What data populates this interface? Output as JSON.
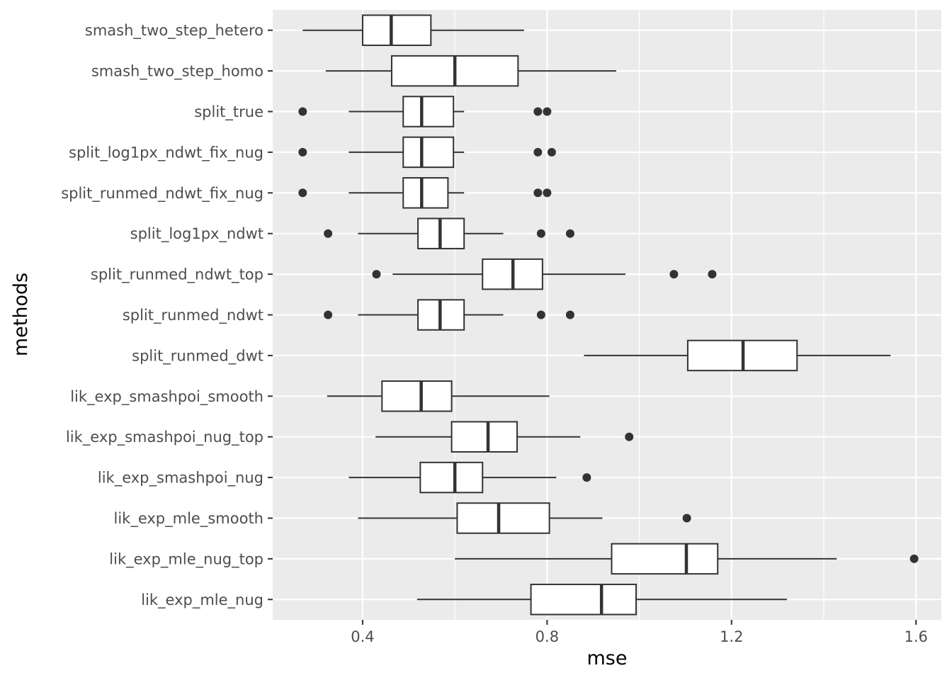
{
  "chart_data": {
    "type": "boxplot",
    "orientation": "horizontal",
    "xlabel": "mse",
    "ylabel": "methods",
    "xlim": [
      0.205,
      1.655
    ],
    "x_ticks": [
      0.4,
      0.8,
      1.2,
      1.6
    ],
    "x_tick_labels": [
      "0.4",
      "0.8",
      "1.2",
      "1.6"
    ],
    "grid": true,
    "categories": [
      "smash_two_step_hetero",
      "smash_two_step_homo",
      "split_true",
      "split_log1px_ndwt_fix_nug",
      "split_runmed_ndwt_fix_nug",
      "split_log1px_ndwt",
      "split_runmed_ndwt_top",
      "split_runmed_ndwt",
      "split_runmed_dwt",
      "lik_exp_smashpoi_smooth",
      "lik_exp_smashpoi_nug_top",
      "lik_exp_smashpoi_nug",
      "lik_exp_mle_smooth",
      "lik_exp_mle_nug_top",
      "lik_exp_mle_nug"
    ],
    "boxes": [
      {
        "name": "smash_two_step_hetero",
        "whisker_low": 0.27,
        "q1": 0.4,
        "median": 0.462,
        "q3": 0.548,
        "whisker_high": 0.75,
        "outliers": []
      },
      {
        "name": "smash_two_step_homo",
        "whisker_low": 0.32,
        "q1": 0.463,
        "median": 0.6,
        "q3": 0.737,
        "whisker_high": 0.95,
        "outliers": []
      },
      {
        "name": "split_true",
        "whisker_low": 0.37,
        "q1": 0.488,
        "median": 0.528,
        "q3": 0.597,
        "whisker_high": 0.62,
        "outliers": [
          0.27,
          0.78,
          0.8
        ]
      },
      {
        "name": "split_log1px_ndwt_fix_nug",
        "whisker_low": 0.37,
        "q1": 0.488,
        "median": 0.528,
        "q3": 0.597,
        "whisker_high": 0.62,
        "outliers": [
          0.27,
          0.78,
          0.81
        ]
      },
      {
        "name": "split_runmed_ndwt_fix_nug",
        "whisker_low": 0.37,
        "q1": 0.488,
        "median": 0.528,
        "q3": 0.585,
        "whisker_high": 0.62,
        "outliers": [
          0.27,
          0.78,
          0.8
        ]
      },
      {
        "name": "split_log1px_ndwt",
        "whisker_low": 0.39,
        "q1": 0.52,
        "median": 0.568,
        "q3": 0.62,
        "whisker_high": 0.705,
        "outliers": [
          0.325,
          0.787,
          0.85
        ]
      },
      {
        "name": "split_runmed_ndwt_top",
        "whisker_low": 0.465,
        "q1": 0.66,
        "median": 0.726,
        "q3": 0.79,
        "whisker_high": 0.97,
        "outliers": [
          0.43,
          1.075,
          1.158
        ]
      },
      {
        "name": "split_runmed_ndwt",
        "whisker_low": 0.39,
        "q1": 0.52,
        "median": 0.568,
        "q3": 0.62,
        "whisker_high": 0.705,
        "outliers": [
          0.325,
          0.787,
          0.85
        ]
      },
      {
        "name": "split_runmed_dwt",
        "whisker_low": 0.88,
        "q1": 1.105,
        "median": 1.225,
        "q3": 1.342,
        "whisker_high": 1.545,
        "outliers": []
      },
      {
        "name": "lik_exp_smashpoi_smooth",
        "whisker_low": 0.323,
        "q1": 0.442,
        "median": 0.527,
        "q3": 0.593,
        "whisker_high": 0.805,
        "outliers": []
      },
      {
        "name": "lik_exp_smashpoi_nug_top",
        "whisker_low": 0.428,
        "q1": 0.593,
        "median": 0.672,
        "q3": 0.735,
        "whisker_high": 0.872,
        "outliers": [
          0.978
        ]
      },
      {
        "name": "lik_exp_smashpoi_nug",
        "whisker_low": 0.37,
        "q1": 0.525,
        "median": 0.6,
        "q3": 0.66,
        "whisker_high": 0.82,
        "outliers": [
          0.886
        ]
      },
      {
        "name": "lik_exp_mle_smooth",
        "whisker_low": 0.39,
        "q1": 0.605,
        "median": 0.695,
        "q3": 0.805,
        "whisker_high": 0.92,
        "outliers": [
          1.103
        ]
      },
      {
        "name": "lik_exp_mle_nug_top",
        "whisker_low": 0.6,
        "q1": 0.94,
        "median": 1.102,
        "q3": 1.17,
        "whisker_high": 1.428,
        "outliers": [
          1.596
        ]
      },
      {
        "name": "lik_exp_mle_nug",
        "whisker_low": 0.518,
        "q1": 0.765,
        "median": 0.918,
        "q3": 0.993,
        "whisker_high": 1.32,
        "outliers": []
      }
    ]
  }
}
